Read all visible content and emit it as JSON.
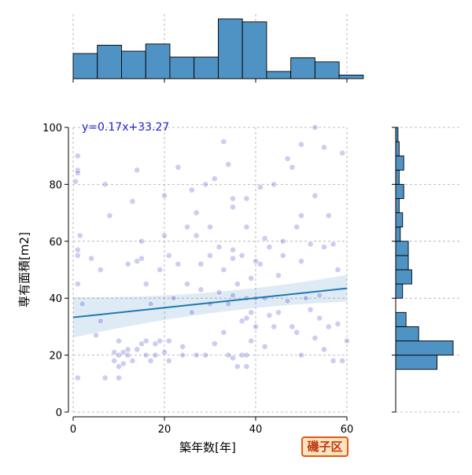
{
  "chart_data": {
    "type": "scatter",
    "xlabel": "築年数[年]",
    "ylabel": "専有面積[m2]",
    "xlim": [
      0,
      60
    ],
    "ylim": [
      0,
      100
    ],
    "x_ticks": [
      0,
      20,
      40,
      60
    ],
    "y_ticks": [
      0,
      20,
      40,
      60,
      80,
      100
    ],
    "grid": true,
    "regression": {
      "equation_label": "y=0.17x+33.27",
      "slope": 0.17,
      "intercept": 33.27,
      "confidence_band": true
    },
    "marginal_x_histogram": {
      "bins_start": 0,
      "bin_width": 5.3,
      "relative_heights": [
        0.42,
        0.56,
        0.46,
        0.58,
        0.36,
        0.36,
        1.0,
        0.95,
        0.12,
        0.35,
        0.28,
        0.06
      ]
    },
    "marginal_y_histogram": {
      "bins_start": 0,
      "bin_width": 5,
      "relative_heights": [
        0,
        0,
        0,
        0.72,
        1.0,
        0.4,
        0.18,
        0,
        0.12,
        0.28,
        0.22,
        0.22,
        0.08,
        0.12,
        0.06,
        0.14,
        0.06,
        0.14,
        0.06,
        0.04
      ]
    },
    "points": [
      [
        1,
        85
      ],
      [
        1,
        84
      ],
      [
        1,
        90
      ],
      [
        1,
        57
      ],
      [
        1,
        55
      ],
      [
        1,
        45
      ],
      [
        1,
        12
      ],
      [
        2,
        38
      ],
      [
        0.5,
        81
      ],
      [
        1.5,
        62
      ],
      [
        4,
        54
      ],
      [
        5,
        27
      ],
      [
        6,
        32
      ],
      [
        6,
        50
      ],
      [
        7,
        12
      ],
      [
        7,
        80
      ],
      [
        8,
        69
      ],
      [
        9,
        18
      ],
      [
        9,
        21
      ],
      [
        10,
        16
      ],
      [
        10,
        25
      ],
      [
        10,
        20
      ],
      [
        10,
        12
      ],
      [
        11,
        17
      ],
      [
        11,
        21
      ],
      [
        12,
        22
      ],
      [
        12,
        20
      ],
      [
        12,
        52
      ],
      [
        13,
        74
      ],
      [
        13,
        18
      ],
      [
        14,
        53
      ],
      [
        14,
        85
      ],
      [
        14,
        22
      ],
      [
        15,
        60
      ],
      [
        15,
        54
      ],
      [
        15,
        24
      ],
      [
        16,
        25
      ],
      [
        16,
        20
      ],
      [
        16,
        45
      ],
      [
        17,
        38
      ],
      [
        17,
        18
      ],
      [
        18,
        24
      ],
      [
        18,
        20
      ],
      [
        19,
        50
      ],
      [
        19,
        25
      ],
      [
        20,
        76
      ],
      [
        20,
        62
      ],
      [
        20,
        21
      ],
      [
        21,
        25
      ],
      [
        21,
        18
      ],
      [
        21,
        55
      ],
      [
        22,
        40
      ],
      [
        23,
        86
      ],
      [
        23,
        52
      ],
      [
        24,
        23
      ],
      [
        24,
        20
      ],
      [
        25,
        45
      ],
      [
        25,
        65
      ],
      [
        26,
        78
      ],
      [
        26,
        35
      ],
      [
        27,
        70
      ],
      [
        27,
        62
      ],
      [
        27,
        20
      ],
      [
        28,
        52
      ],
      [
        28,
        43
      ],
      [
        29,
        80
      ],
      [
        29,
        20
      ],
      [
        30,
        65
      ],
      [
        30,
        55
      ],
      [
        30,
        38
      ],
      [
        31,
        82
      ],
      [
        31,
        24
      ],
      [
        32,
        58
      ],
      [
        32,
        42
      ],
      [
        33,
        95
      ],
      [
        33,
        50
      ],
      [
        33,
        28
      ],
      [
        34,
        87
      ],
      [
        34,
        38
      ],
      [
        34,
        20
      ],
      [
        35,
        75
      ],
      [
        35,
        72
      ],
      [
        35,
        57
      ],
      [
        35,
        54
      ],
      [
        35,
        41
      ],
      [
        35,
        19
      ],
      [
        36,
        16
      ],
      [
        36,
        45
      ],
      [
        37,
        55
      ],
      [
        37,
        32
      ],
      [
        37,
        20
      ],
      [
        38,
        75
      ],
      [
        38,
        65
      ],
      [
        38,
        40
      ],
      [
        38,
        33
      ],
      [
        38,
        20
      ],
      [
        38,
        16
      ],
      [
        39,
        47
      ],
      [
        39,
        35
      ],
      [
        39,
        25
      ],
      [
        40,
        53
      ],
      [
        40,
        40
      ],
      [
        40,
        30
      ],
      [
        41,
        79
      ],
      [
        41,
        52
      ],
      [
        42,
        61
      ],
      [
        42,
        40
      ],
      [
        42,
        23
      ],
      [
        43,
        58
      ],
      [
        43,
        34
      ],
      [
        44,
        80
      ],
      [
        44,
        30
      ],
      [
        45,
        48
      ],
      [
        45,
        35
      ],
      [
        46,
        60
      ],
      [
        46,
        55
      ],
      [
        47,
        89
      ],
      [
        47,
        39
      ],
      [
        48,
        86
      ],
      [
        48,
        30
      ],
      [
        49,
        65
      ],
      [
        49,
        28
      ],
      [
        50,
        94
      ],
      [
        50,
        69
      ],
      [
        50,
        53
      ],
      [
        50,
        20
      ],
      [
        51,
        40
      ],
      [
        52,
        59
      ],
      [
        52,
        36
      ],
      [
        53,
        100
      ],
      [
        53,
        76
      ],
      [
        53,
        26
      ],
      [
        54,
        41
      ],
      [
        54,
        33
      ],
      [
        55,
        93
      ],
      [
        55,
        58
      ],
      [
        55,
        22
      ],
      [
        56,
        69
      ],
      [
        56,
        30
      ],
      [
        57,
        59
      ],
      [
        57,
        18
      ],
      [
        58,
        50
      ],
      [
        58,
        31
      ],
      [
        59,
        91
      ],
      [
        59,
        18
      ],
      [
        60,
        25
      ]
    ]
  },
  "district_badge": "磯子区",
  "colors": {
    "hist_fill": "#4f93c5",
    "scatter_point": "#1a1acc",
    "regression_line": "#1f77b4",
    "equation_text": "#2222cc",
    "badge_border": "#e05a10",
    "badge_bg": "#fde4c0"
  }
}
